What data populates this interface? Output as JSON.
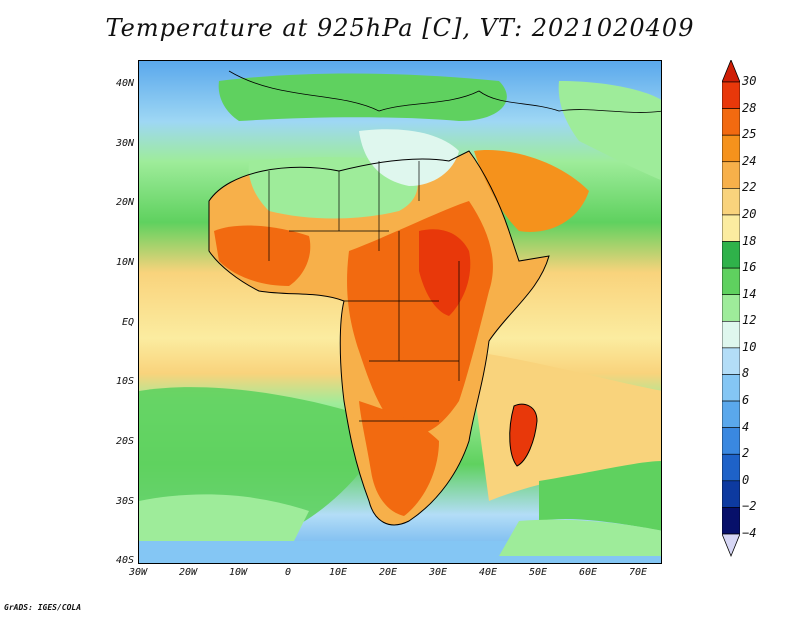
{
  "title": "Temperature at 925hPa [C], VT: 2021020409",
  "credit": "GrADS: IGES/COLA",
  "lat_labels": [
    "40N",
    "30N",
    "20N",
    "10N",
    "EQ",
    "10S",
    "20S",
    "30S",
    "40S"
  ],
  "lon_labels": [
    "30W",
    "20W",
    "10W",
    "0",
    "10E",
    "20E",
    "30E",
    "40E",
    "50E",
    "60E",
    "70E"
  ],
  "colorbar": {
    "labels": [
      "30",
      "28",
      "25",
      "24",
      "22",
      "20",
      "18",
      "16",
      "14",
      "12",
      "10",
      "8",
      "6",
      "4",
      "2",
      "0",
      "−2",
      "−4"
    ],
    "colors": [
      "#e8380a",
      "#f26a10",
      "#f5921c",
      "#f7b04a",
      "#f9d37c",
      "#fbeca0",
      "#2fb24a",
      "#5fd15f",
      "#9eec9a",
      "#dff7ee",
      "#b3ddf7",
      "#84c6f4",
      "#5aa8ec",
      "#3a88e0",
      "#1e62c8",
      "#0d3aa0",
      "#07106a"
    ],
    "top_triangle_color": "#cf1e06",
    "bottom_triangle_color": "#d7d7f5"
  },
  "map": {
    "projection": "lat-lon",
    "lon_range": [
      -30,
      75
    ],
    "lat_range": [
      -40,
      45
    ],
    "variable": "temperature_925hPa_C",
    "valid_time": "2021020409"
  }
}
